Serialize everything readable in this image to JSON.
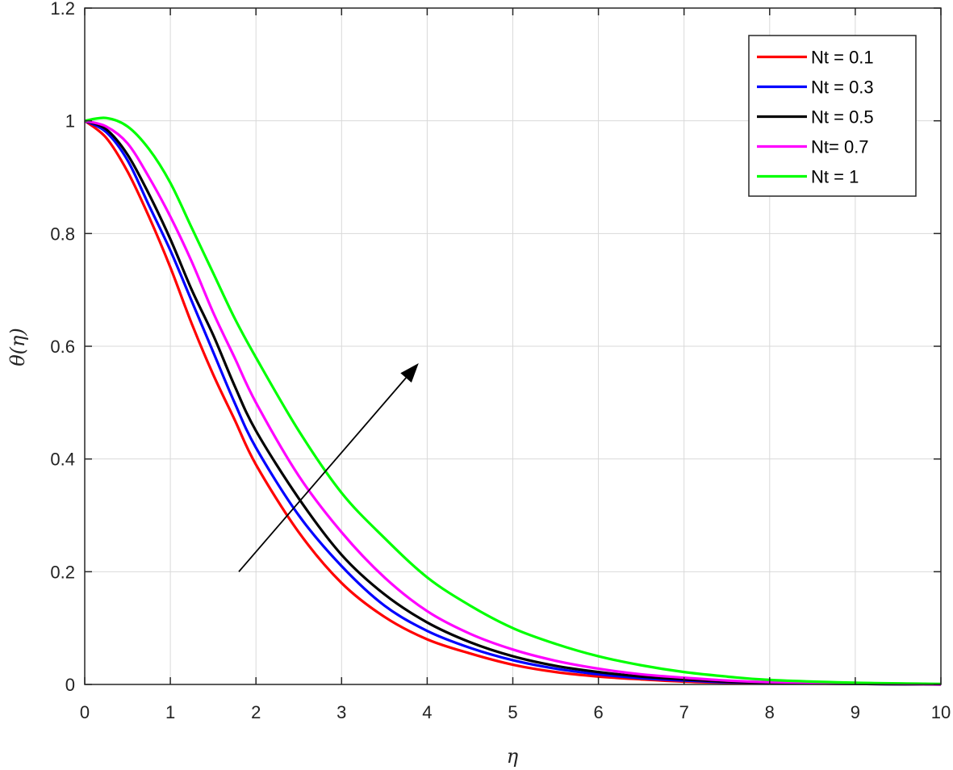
{
  "chart_data": {
    "type": "line",
    "title": "",
    "xlabel": "η",
    "ylabel": "θ(η)",
    "xlim": [
      0,
      10
    ],
    "ylim": [
      0,
      1.2
    ],
    "xticks": [
      "0",
      "1",
      "2",
      "3",
      "4",
      "5",
      "6",
      "7",
      "8",
      "9",
      "10"
    ],
    "yticks": [
      "0",
      "0.2",
      "0.4",
      "0.6",
      "0.8",
      "1",
      "1.2"
    ],
    "grid": true,
    "legend_position": "top-right",
    "x": [
      0,
      0.25,
      0.5,
      0.75,
      1,
      1.25,
      1.5,
      1.75,
      2,
      2.5,
      3,
      3.5,
      4,
      4.5,
      5,
      5.5,
      6,
      6.5,
      7,
      7.5,
      8,
      9,
      10
    ],
    "series": [
      {
        "name": "Nt = 0.1",
        "color": "#ff0000",
        "values": [
          1.0,
          0.97,
          0.91,
          0.83,
          0.74,
          0.64,
          0.55,
          0.47,
          0.39,
          0.27,
          0.18,
          0.12,
          0.08,
          0.055,
          0.035,
          0.022,
          0.014,
          0.009,
          0.005,
          0.003,
          0.002,
          0.001,
          0.0
        ]
      },
      {
        "name": "Nt = 0.3",
        "color": "#0000ff",
        "values": [
          1.0,
          0.98,
          0.93,
          0.85,
          0.77,
          0.68,
          0.59,
          0.5,
          0.42,
          0.3,
          0.21,
          0.14,
          0.095,
          0.065,
          0.043,
          0.028,
          0.018,
          0.011,
          0.007,
          0.004,
          0.003,
          0.001,
          0.0
        ]
      },
      {
        "name": "Nt = 0.5",
        "color": "#000000",
        "values": [
          1.0,
          0.985,
          0.94,
          0.87,
          0.79,
          0.7,
          0.62,
          0.53,
          0.45,
          0.33,
          0.23,
          0.16,
          0.11,
          0.075,
          0.05,
          0.033,
          0.022,
          0.014,
          0.009,
          0.005,
          0.003,
          0.001,
          0.0
        ]
      },
      {
        "name": "Nt= 0.7",
        "color": "#ff00ff",
        "values": [
          1.0,
          0.99,
          0.96,
          0.9,
          0.83,
          0.75,
          0.66,
          0.58,
          0.5,
          0.37,
          0.27,
          0.19,
          0.13,
          0.09,
          0.062,
          0.042,
          0.028,
          0.018,
          0.012,
          0.007,
          0.004,
          0.002,
          0.0
        ]
      },
      {
        "name": "Nt = 1",
        "color": "#00ff00",
        "values": [
          1.0,
          1.005,
          0.99,
          0.95,
          0.89,
          0.81,
          0.73,
          0.65,
          0.58,
          0.45,
          0.34,
          0.26,
          0.19,
          0.14,
          0.1,
          0.072,
          0.05,
          0.034,
          0.022,
          0.014,
          0.008,
          0.003,
          0.001
        ]
      }
    ],
    "annotations": [
      {
        "type": "arrow",
        "from": [
          1.8,
          0.2
        ],
        "to": [
          3.9,
          0.57
        ]
      }
    ]
  }
}
